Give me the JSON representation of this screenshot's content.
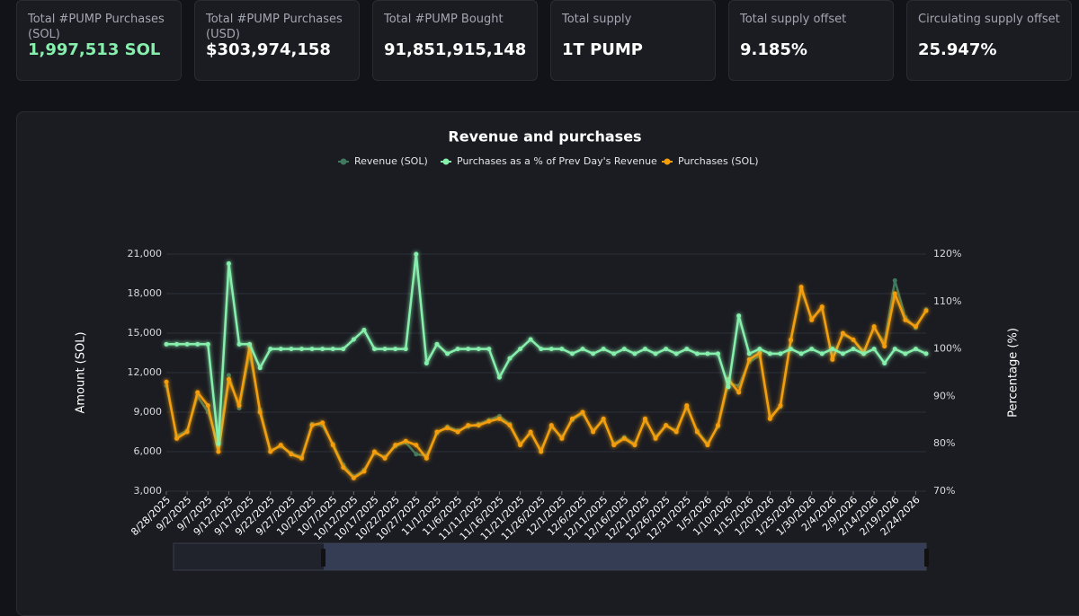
{
  "stats": [
    {
      "label": "Total #PUMP Purchases (SOL)",
      "value": "1,997,513 SOL"
    },
    {
      "label": "Total #PUMP Purchases (USD)",
      "value": "$303,974,158"
    },
    {
      "label": "Total #PUMP Bought",
      "value": "91,851,915,148"
    },
    {
      "label": "Total supply",
      "value": "1T PUMP"
    },
    {
      "label": "Total supply offset",
      "value": "9.185%"
    },
    {
      "label": "Circulating supply offset",
      "value": "25.947%"
    }
  ],
  "chart_data": {
    "type": "line",
    "title": "Revenue and purchases",
    "ylabel": "Amount (SOL)",
    "y2label": "Percentage (%)",
    "categories": [
      "8/28/2025",
      null,
      "9/2/2025",
      null,
      "9/7/2025",
      null,
      "9/12/2025",
      null,
      "9/17/2025",
      null,
      "9/22/2025",
      null,
      "9/27/2025",
      null,
      "10/2/2025",
      null,
      "10/7/2025",
      null,
      "10/12/2025",
      null,
      "10/17/2025",
      null,
      "10/22/2025",
      null,
      "10/27/2025",
      null,
      "11/1/2025",
      null,
      "11/6/2025",
      null,
      "11/11/2025",
      null,
      "11/16/2025",
      null,
      "11/21/2025",
      null,
      "11/26/2025",
      null,
      "12/1/2025",
      null,
      "12/6/2025",
      null,
      "12/11/2025",
      null,
      "12/16/2025",
      null,
      "12/21/2025",
      null,
      "12/26/2025",
      null,
      "12/31/2025",
      null,
      "1/5/2026",
      null,
      "1/10/2026",
      null,
      "1/15/2026",
      null,
      "1/20/2026",
      null,
      "1/25/2026",
      null,
      "1/30/2026",
      null,
      "2/4/2026",
      null,
      "2/9/2026",
      null,
      "2/14/2026",
      null,
      "2/19/2026",
      null,
      "2/24/2026",
      null
    ],
    "series": [
      {
        "name": "Revenue (SOL)",
        "color": "#3f7a5f",
        "values": [
          11000,
          7200,
          7600,
          10200,
          9000,
          6500,
          11800,
          9300,
          13500,
          9200,
          6100,
          6400,
          5900,
          5600,
          8100,
          8000,
          6600,
          5000,
          4100,
          4600,
          5900,
          5600,
          6400,
          6700,
          5800,
          5700,
          7400,
          7900,
          7600,
          7900,
          8100,
          8400,
          8700,
          8100,
          6600,
          7400,
          6100,
          7900,
          7100,
          8400,
          8900,
          7600,
          8400,
          6600,
          7100,
          6600,
          8400,
          7100,
          8000,
          7600,
          9400,
          7600,
          6600,
          7900,
          11200,
          11000,
          12800,
          13300,
          8600,
          9400,
          14400,
          18300,
          16100,
          16900,
          13100,
          14900,
          14500,
          13600,
          15400,
          14300,
          19000,
          16200,
          15400,
          16800
        ]
      },
      {
        "name": "Purchases as a % of Prev Day's Revenue",
        "color": "#86efac",
        "axis": "y2",
        "values": [
          101,
          101,
          101,
          101,
          101,
          80,
          118,
          101,
          101,
          96,
          100,
          100,
          100,
          100,
          100,
          100,
          100,
          100,
          102,
          104,
          100,
          100,
          100,
          100,
          120,
          97,
          101,
          99,
          100,
          100,
          100,
          100,
          94,
          98,
          100,
          102,
          100,
          100,
          100,
          99,
          100,
          99,
          100,
          99,
          100,
          99,
          100,
          99,
          100,
          99,
          100,
          99,
          99,
          99,
          92,
          107,
          99,
          100,
          99,
          99,
          100,
          99,
          100,
          99,
          100,
          99,
          100,
          99,
          100,
          97,
          100,
          99,
          100,
          99
        ]
      },
      {
        "name": "Purchases (SOL)",
        "color": "#f59e0b",
        "values": [
          11300,
          7000,
          7500,
          10500,
          9500,
          6000,
          11500,
          9500,
          14000,
          9000,
          6000,
          6500,
          5800,
          5500,
          8000,
          8200,
          6500,
          4800,
          4000,
          4500,
          6000,
          5500,
          6500,
          6800,
          6500,
          5500,
          7500,
          7800,
          7500,
          8000,
          8000,
          8300,
          8500,
          8000,
          6500,
          7500,
          6000,
          8000,
          7000,
          8500,
          9000,
          7500,
          8500,
          6500,
          7000,
          6500,
          8500,
          7000,
          8000,
          7500,
          9500,
          7500,
          6500,
          8000,
          11500,
          10500,
          13000,
          13500,
          8500,
          9500,
          14500,
          18500,
          16000,
          17000,
          13000,
          15000,
          14500,
          13500,
          15500,
          14000,
          18000,
          16000,
          15500,
          16700
        ]
      }
    ],
    "ylim": [
      3000,
      21000
    ],
    "yticks": [
      {
        "value": 3000,
        "label": "3,000"
      },
      {
        "value": 6000,
        "label": "6,000"
      },
      {
        "value": 9000,
        "label": "9,000"
      },
      {
        "value": 12000,
        "label": "12,000"
      },
      {
        "value": 15000,
        "label": "15,000"
      },
      {
        "value": 18000,
        "label": "18,000"
      },
      {
        "value": 21000,
        "label": "21,000"
      }
    ],
    "y2lim": [
      70,
      120
    ],
    "y2ticks": [
      {
        "value": 70,
        "label": "70%"
      },
      {
        "value": 80,
        "label": "80%"
      },
      {
        "value": 90,
        "label": "90%"
      },
      {
        "value": 100,
        "label": "100%"
      },
      {
        "value": 110,
        "label": "110%"
      },
      {
        "value": 120,
        "label": "120%"
      }
    ],
    "grid": true,
    "legend": "top"
  }
}
